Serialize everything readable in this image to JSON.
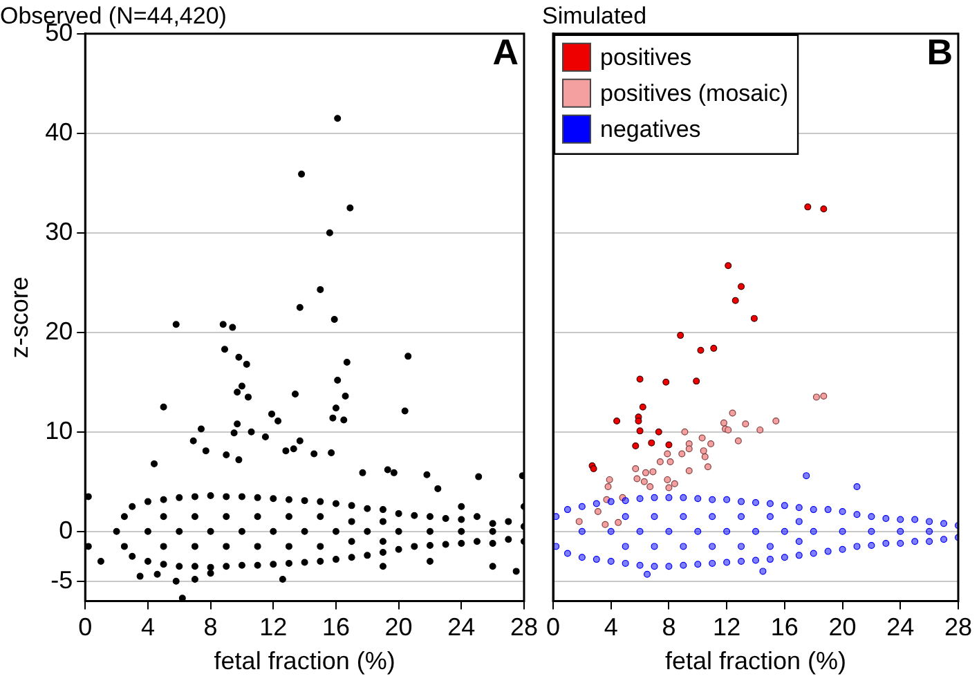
{
  "chart_data": [
    {
      "type": "scatter",
      "title": "Observed (N=44,420)",
      "xlabel": "fetal fraction (%)",
      "ylabel": "z-score",
      "annotations": [
        "A"
      ],
      "xlim": [
        0,
        28
      ],
      "xticks": [
        0,
        4,
        8,
        12,
        16,
        20,
        24,
        28
      ],
      "ylim": [
        -7,
        50
      ],
      "yticks": [
        -5,
        0,
        10,
        20,
        30,
        40,
        50
      ],
      "grid": "y",
      "marker": "circle",
      "legend": false,
      "series": [
        {
          "color": "#000000",
          "x": [
            16.1,
            13.8,
            16.9,
            15.6,
            15.0,
            13.7,
            15.9,
            5.8,
            8.8,
            9.4,
            8.9,
            9.8,
            10.3,
            16.7,
            20.6,
            16.1,
            10.0,
            9.7,
            10.4,
            13.4,
            16.6,
            5.0,
            20.4,
            16.0,
            15.8,
            16.5,
            11.9,
            12.3,
            7.4,
            9.7,
            10.6,
            9.5,
            11.5,
            6.9,
            13.7,
            7.7,
            13.3,
            12.8,
            14.6,
            15.7,
            9.0,
            4.4,
            9.8,
            17.7,
            19.3,
            19.7,
            21.8,
            25.1,
            27.9,
            22.5,
            6.2,
            12.6,
            2,
            2.5,
            2.5,
            3,
            3,
            4,
            4,
            5,
            5,
            6,
            6,
            7,
            7,
            8,
            8,
            9,
            9,
            10,
            10,
            11,
            11,
            12,
            12,
            13,
            13,
            14,
            14,
            15,
            15,
            16,
            16,
            17,
            17,
            18,
            18,
            19,
            19,
            20,
            20,
            21,
            21,
            22,
            22,
            23,
            23,
            24,
            24,
            25,
            25,
            26,
            26,
            27,
            27,
            28,
            28,
            0.2,
            0.2,
            4,
            6,
            8,
            10,
            12,
            14,
            16,
            18,
            20,
            22,
            24,
            26,
            5,
            7,
            9,
            11,
            13,
            15,
            17,
            5,
            7,
            9,
            11,
            13,
            15,
            17,
            19,
            19,
            4.6,
            5.8,
            7,
            8,
            19,
            22,
            26,
            27.5,
            3.5,
            1,
            24,
            28
          ],
          "values": [
            41.5,
            35.9,
            32.5,
            30.0,
            24.3,
            22.5,
            21.3,
            20.8,
            20.8,
            20.5,
            18.3,
            17.5,
            16.8,
            17.0,
            17.6,
            15.2,
            14.6,
            14.0,
            13.5,
            13.8,
            13.6,
            12.5,
            12.1,
            12.4,
            11.4,
            11.2,
            11.8,
            11.1,
            10.3,
            10.8,
            10.0,
            9.9,
            9.5,
            9.1,
            9.1,
            8.1,
            8.3,
            8.1,
            7.8,
            7.9,
            7.7,
            6.8,
            7.2,
            5.9,
            6.2,
            5.9,
            5.7,
            5.5,
            5.6,
            4.3,
            -6.7,
            -4.8,
            0,
            1.5,
            -1.5,
            2.5,
            -2.5,
            3,
            -3,
            3.2,
            -3.3,
            3.4,
            -3.5,
            3.5,
            -3.5,
            3.6,
            -3.6,
            3.5,
            -3.5,
            3.5,
            -3.4,
            3.4,
            -3.4,
            3.3,
            -3.3,
            3.2,
            -3.2,
            3.1,
            -3.1,
            3,
            -3,
            2.8,
            -2.8,
            2.6,
            -2.6,
            2.3,
            -2.4,
            2.2,
            -2.1,
            1.8,
            -1.8,
            1.6,
            -1.5,
            1.5,
            -1.4,
            1.3,
            -1.3,
            1.2,
            -1.2,
            1.5,
            -1,
            0.8,
            -1.2,
            1,
            -0.8,
            0.5,
            -1,
            3.5,
            -1.5,
            0,
            0,
            0,
            0,
            0,
            0,
            0,
            0,
            0,
            0,
            0,
            0,
            1.5,
            1.5,
            1.5,
            1.5,
            1.5,
            1.5,
            1,
            -1.5,
            -1.5,
            -1.5,
            -1.5,
            -1.5,
            -1.5,
            -1,
            1,
            -1,
            -4.3,
            -5,
            -4.8,
            -4.2,
            -3.5,
            -3,
            -3.5,
            -4,
            -4.5,
            -3,
            2.5,
            2.5
          ]
        }
      ]
    },
    {
      "type": "scatter",
      "title": "Simulated",
      "xlabel": "fetal fraction (%)",
      "annotations": [
        "B"
      ],
      "xlim": [
        0,
        28
      ],
      "xticks": [
        0,
        4,
        8,
        12,
        16,
        20,
        24,
        28
      ],
      "ylim": [
        -7,
        50
      ],
      "yticks": [
        -5,
        0,
        10,
        20,
        30,
        40,
        50
      ],
      "tick_labels": "x",
      "grid": "y",
      "marker": "circle",
      "legend": "top left",
      "series": [
        {
          "name": "positives",
          "color": "#ee0000",
          "x": [
            17.6,
            18.7,
            12.1,
            13.0,
            12.6,
            13.9,
            8.8,
            10.2,
            11.1,
            6.0,
            7.8,
            9.9,
            4.4,
            6.2,
            5.9,
            5.9,
            6.0,
            7.3,
            5.7,
            6.8,
            8.0,
            2.7,
            2.8
          ],
          "values": [
            32.6,
            32.4,
            26.7,
            24.6,
            23.2,
            21.4,
            19.7,
            18.2,
            18.4,
            15.3,
            15.0,
            15.1,
            11.1,
            12.5,
            11.5,
            11.1,
            10.1,
            10.0,
            8.6,
            8.9,
            8.7,
            6.6,
            6.3
          ]
        },
        {
          "name": "positives (mosaic)",
          "color": "#f4a0a0",
          "x": [
            18.2,
            18.7,
            12.4,
            11.8,
            13.3,
            15.4,
            14.3,
            11.9,
            12.1,
            12.8,
            9.1,
            10.3,
            10.9,
            9.4,
            9.4,
            8.9,
            10.4,
            10.5,
            7.9,
            7.4,
            8.1,
            10.7,
            9.4,
            5.7,
            6.4,
            6.9,
            7.9,
            8.4,
            5.8,
            6.3,
            6.7,
            8.0,
            3.9,
            3.8,
            3.7,
            4.8,
            3.1,
            1.8,
            3.6,
            4.5
          ],
          "values": [
            13.5,
            13.6,
            11.9,
            10.9,
            10.8,
            11.1,
            10.2,
            10.3,
            10.2,
            9.1,
            10.0,
            9.4,
            8.8,
            8.8,
            8.3,
            7.8,
            8.1,
            7.5,
            7.8,
            7.0,
            7.0,
            6.5,
            6.1,
            6.3,
            5.9,
            6.0,
            5.2,
            4.8,
            5.3,
            5.0,
            4.5,
            4.4,
            5.2,
            4.5,
            3.2,
            3.4,
            2.0,
            1.0,
            0.7,
            0.9
          ]
        },
        {
          "name": "negatives",
          "color": "#0000ff",
          "x": [
            0.2,
            0.2,
            1,
            1,
            2,
            2,
            3,
            3,
            4,
            4,
            5,
            5,
            6,
            6,
            7,
            7,
            8,
            8,
            9,
            9,
            10,
            10,
            11,
            11,
            12,
            12,
            13,
            13,
            14,
            14,
            15,
            15,
            16,
            16,
            17,
            17,
            18,
            18,
            19,
            19,
            20,
            20,
            21,
            21,
            22,
            22,
            23,
            23,
            24,
            24,
            25,
            25,
            26,
            26,
            27,
            27,
            28,
            28,
            2,
            4,
            6,
            8,
            10,
            12,
            14,
            16,
            18,
            20,
            22,
            24,
            26,
            5,
            7,
            9,
            11,
            13,
            15,
            17,
            5,
            7,
            9,
            11,
            13,
            15,
            17,
            6.5,
            14.5,
            17.5,
            21
          ],
          "values": [
            1.5,
            -1.5,
            2.2,
            -2.2,
            2.5,
            -2.6,
            2.8,
            -2.8,
            3,
            -3,
            3.1,
            -3.2,
            3.3,
            -3.4,
            3.4,
            -3.5,
            3.4,
            -3.5,
            3.4,
            -3.4,
            3.3,
            -3.3,
            3.2,
            -3.2,
            3.2,
            -3.1,
            3,
            -3,
            2.9,
            -2.9,
            2.8,
            -2.8,
            2.6,
            -2.6,
            2.4,
            -2.4,
            2.2,
            -2.2,
            2.2,
            -2,
            2,
            -1.8,
            1.7,
            -1.5,
            1.5,
            -1.4,
            1.3,
            -1.2,
            1.2,
            -1.2,
            1.2,
            -1,
            1,
            -1,
            0.8,
            -0.8,
            0.6,
            -0.6,
            0,
            0,
            0,
            0,
            0,
            0,
            0,
            0,
            0,
            0,
            0,
            0,
            0,
            1.5,
            1.5,
            1.5,
            1.5,
            1.5,
            1.5,
            1,
            -1.5,
            -1.5,
            -1.5,
            -1.5,
            -1.5,
            -1.5,
            -1,
            -4.3,
            -4,
            5.6,
            4.5
          ]
        }
      ]
    }
  ]
}
